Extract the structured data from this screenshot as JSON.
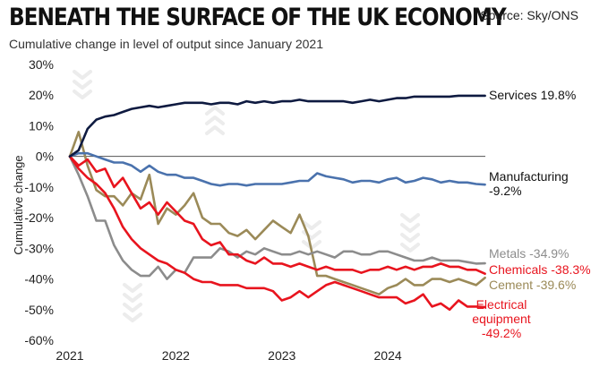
{
  "header": {
    "title": "BENEATH THE SURFACE OF THE UK ECONOMY",
    "source": "Source: Sky/ONS",
    "subtitle": "Cumulative change in level of output since January 2021"
  },
  "chart_data": {
    "type": "line",
    "ylabel": "Cumulative change",
    "ylim": [
      -60,
      30
    ],
    "yticks": [
      30,
      20,
      10,
      0,
      -10,
      -20,
      -30,
      -40,
      -50,
      -60
    ],
    "ytick_labels": [
      "30%",
      "20%",
      "10%",
      "0%",
      "-10%",
      "-20%",
      "-30%",
      "-40%",
      "-50%",
      "-60%"
    ],
    "xlim": [
      2021.0,
      2024.92
    ],
    "xticks": [
      2021,
      2022,
      2023,
      2024
    ],
    "xtick_labels": [
      "2021",
      "2022",
      "2023",
      "2024"
    ],
    "x_unit": "year",
    "zero_line": true,
    "grid": false,
    "series": [
      {
        "name": "Services",
        "end_label": [
          "Services 19.8%"
        ],
        "color": "#0e1a40",
        "x": [
          2021.0,
          2021.083,
          2021.167,
          2021.25,
          2021.333,
          2021.417,
          2021.5,
          2021.583,
          2021.667,
          2021.75,
          2021.833,
          2021.917,
          2022.0,
          2022.083,
          2022.167,
          2022.25,
          2022.333,
          2022.417,
          2022.5,
          2022.583,
          2022.667,
          2022.75,
          2022.833,
          2022.917,
          2023.0,
          2023.083,
          2023.167,
          2023.25,
          2023.333,
          2023.417,
          2023.5,
          2023.583,
          2023.667,
          2023.75,
          2023.833,
          2023.917,
          2024.0,
          2024.083,
          2024.167,
          2024.25,
          2024.333,
          2024.417,
          2024.5,
          2024.583,
          2024.667,
          2024.75,
          2024.833,
          2024.917
        ],
        "y": [
          0,
          2,
          9,
          12,
          13,
          13.5,
          14.5,
          15.5,
          16,
          16.5,
          16,
          16.5,
          17,
          17.5,
          17.5,
          17.5,
          17,
          17.5,
          17.5,
          17,
          18,
          17.5,
          18,
          17.5,
          18,
          18,
          18.5,
          18,
          18,
          18,
          18,
          18,
          17.5,
          18,
          18.5,
          18,
          18.5,
          19,
          19,
          19.5,
          19.5,
          19.5,
          19.5,
          19.5,
          19.8,
          19.8,
          19.8,
          19.8
        ]
      },
      {
        "name": "Manufacturing",
        "end_label": [
          "Manufacturing",
          "-9.2%"
        ],
        "color": "#4a72ad",
        "x": [
          2021.0,
          2021.083,
          2021.167,
          2021.25,
          2021.333,
          2021.417,
          2021.5,
          2021.583,
          2021.667,
          2021.75,
          2021.833,
          2021.917,
          2022.0,
          2022.083,
          2022.167,
          2022.25,
          2022.333,
          2022.417,
          2022.5,
          2022.583,
          2022.667,
          2022.75,
          2022.833,
          2022.917,
          2023.0,
          2023.083,
          2023.167,
          2023.25,
          2023.333,
          2023.417,
          2023.5,
          2023.583,
          2023.667,
          2023.75,
          2023.833,
          2023.917,
          2024.0,
          2024.083,
          2024.167,
          2024.25,
          2024.333,
          2024.417,
          2024.5,
          2024.583,
          2024.667,
          2024.75,
          2024.833,
          2024.917
        ],
        "y": [
          0,
          1,
          1,
          0,
          -1,
          -2,
          -2,
          -3,
          -5,
          -3,
          -5,
          -6,
          -6,
          -7,
          -7,
          -8,
          -9,
          -9.5,
          -9,
          -9,
          -9.5,
          -9,
          -9,
          -9,
          -9,
          -8.5,
          -8,
          -8,
          -5.5,
          -6.5,
          -7,
          -7.5,
          -8.5,
          -8,
          -8,
          -8.5,
          -7.5,
          -7,
          -8.5,
          -8,
          -7,
          -7.5,
          -8.5,
          -8,
          -8.5,
          -8.5,
          -9,
          -9.2
        ]
      },
      {
        "name": "Metals",
        "end_label": [
          "Metals -34.9%"
        ],
        "color": "#8c8c8c",
        "x": [
          2021.0,
          2021.083,
          2021.167,
          2021.25,
          2021.333,
          2021.417,
          2021.5,
          2021.583,
          2021.667,
          2021.75,
          2021.833,
          2021.917,
          2022.0,
          2022.083,
          2022.167,
          2022.25,
          2022.333,
          2022.417,
          2022.5,
          2022.583,
          2022.667,
          2022.75,
          2022.833,
          2022.917,
          2023.0,
          2023.083,
          2023.167,
          2023.25,
          2023.333,
          2023.417,
          2023.5,
          2023.583,
          2023.667,
          2023.75,
          2023.833,
          2023.917,
          2024.0,
          2024.083,
          2024.167,
          2024.25,
          2024.333,
          2024.417,
          2024.5,
          2024.583,
          2024.667,
          2024.75,
          2024.833,
          2024.917
        ],
        "y": [
          0,
          -6,
          -13,
          -21,
          -21,
          -29,
          -34,
          -37,
          -39,
          -39,
          -36,
          -40,
          -37,
          -38,
          -33,
          -33,
          -33,
          -30,
          -31,
          -33,
          -31,
          -32,
          -30,
          -31,
          -32,
          -32,
          -31,
          -32,
          -31,
          -32,
          -33,
          -31,
          -31,
          -32,
          -32,
          -31,
          -31,
          -32,
          -33,
          -34,
          -34,
          -33,
          -34,
          -34,
          -34,
          -34.5,
          -35,
          -34.9
        ]
      },
      {
        "name": "Cement",
        "end_label": [
          "Cement -39.6%"
        ],
        "color": "#9b8a58",
        "x": [
          2021.0,
          2021.083,
          2021.167,
          2021.25,
          2021.333,
          2021.417,
          2021.5,
          2021.583,
          2021.667,
          2021.75,
          2021.833,
          2021.917,
          2022.0,
          2022.083,
          2022.167,
          2022.25,
          2022.333,
          2022.417,
          2022.5,
          2022.583,
          2022.667,
          2022.75,
          2022.833,
          2022.917,
          2023.0,
          2023.083,
          2023.167,
          2023.25,
          2023.333,
          2023.417,
          2023.5,
          2023.583,
          2023.667,
          2023.75,
          2023.833,
          2023.917,
          2024.0,
          2024.083,
          2024.167,
          2024.25,
          2024.333,
          2024.417,
          2024.5,
          2024.583,
          2024.667,
          2024.75,
          2024.833,
          2024.917
        ],
        "y": [
          0,
          8,
          -3,
          -11,
          -13,
          -13,
          -16,
          -12,
          -14,
          -6,
          -22,
          -17,
          -19,
          -16,
          -12,
          -20,
          -22,
          -22,
          -25,
          -26,
          -24,
          -27,
          -24,
          -21,
          -23,
          -25,
          -19,
          -26,
          -39,
          -39,
          -40,
          -41,
          -42,
          -43,
          -44,
          -45,
          -43,
          -42,
          -40,
          -42,
          -42,
          -40,
          -40,
          -41,
          -40,
          -41,
          -42,
          -39.6
        ]
      },
      {
        "name": "Chemicals",
        "end_label": [
          "Chemicals -38.3%"
        ],
        "color": "#e8141e",
        "x": [
          2021.0,
          2021.083,
          2021.167,
          2021.25,
          2021.333,
          2021.417,
          2021.5,
          2021.583,
          2021.667,
          2021.75,
          2021.833,
          2021.917,
          2022.0,
          2022.083,
          2022.167,
          2022.25,
          2022.333,
          2022.417,
          2022.5,
          2022.583,
          2022.667,
          2022.75,
          2022.833,
          2022.917,
          2023.0,
          2023.083,
          2023.167,
          2023.25,
          2023.333,
          2023.417,
          2023.5,
          2023.583,
          2023.667,
          2023.75,
          2023.833,
          2023.917,
          2024.0,
          2024.083,
          2024.167,
          2024.25,
          2024.333,
          2024.417,
          2024.5,
          2024.583,
          2024.667,
          2024.75,
          2024.833,
          2024.917
        ],
        "y": [
          0,
          -3,
          -1,
          -5,
          -4,
          -10,
          -7,
          -12,
          -17,
          -15,
          -19,
          -15,
          -18,
          -21,
          -22,
          -27,
          -29,
          -28,
          -32,
          -32,
          -34,
          -35,
          -33,
          -35,
          -35,
          -36,
          -35,
          -36,
          -37,
          -36,
          -37,
          -37,
          -37,
          -38,
          -37,
          -37,
          -36,
          -37,
          -36,
          -37,
          -36,
          -36,
          -35,
          -36,
          -36,
          -37,
          -37,
          -38.3
        ]
      },
      {
        "name": "Electrical equipment",
        "end_label": [
          "Electrical",
          "equipment",
          "-49.2%"
        ],
        "color": "#e8141e",
        "x": [
          2021.0,
          2021.083,
          2021.167,
          2021.25,
          2021.333,
          2021.417,
          2021.5,
          2021.583,
          2021.667,
          2021.75,
          2021.833,
          2021.917,
          2022.0,
          2022.083,
          2022.167,
          2022.25,
          2022.333,
          2022.417,
          2022.5,
          2022.583,
          2022.667,
          2022.75,
          2022.833,
          2022.917,
          2023.0,
          2023.083,
          2023.167,
          2023.25,
          2023.333,
          2023.417,
          2023.5,
          2023.583,
          2023.667,
          2023.75,
          2023.833,
          2023.917,
          2024.0,
          2024.083,
          2024.167,
          2024.25,
          2024.333,
          2024.417,
          2024.5,
          2024.583,
          2024.667,
          2024.75,
          2024.833,
          2024.917
        ],
        "y": [
          0,
          -4,
          -7,
          -9,
          -12,
          -17,
          -23,
          -27,
          -30,
          -32,
          -34,
          -35,
          -37,
          -38,
          -40,
          -41,
          -41,
          -42,
          -42,
          -42,
          -43,
          -43,
          -43,
          -44,
          -47,
          -46,
          -44,
          -46,
          -44,
          -42,
          -41,
          -42,
          -43,
          -44,
          -45,
          -46,
          -46,
          -46,
          -48,
          -47,
          -45,
          -49,
          -48,
          -50,
          -47,
          -49,
          -49,
          -49.2
        ]
      }
    ]
  }
}
